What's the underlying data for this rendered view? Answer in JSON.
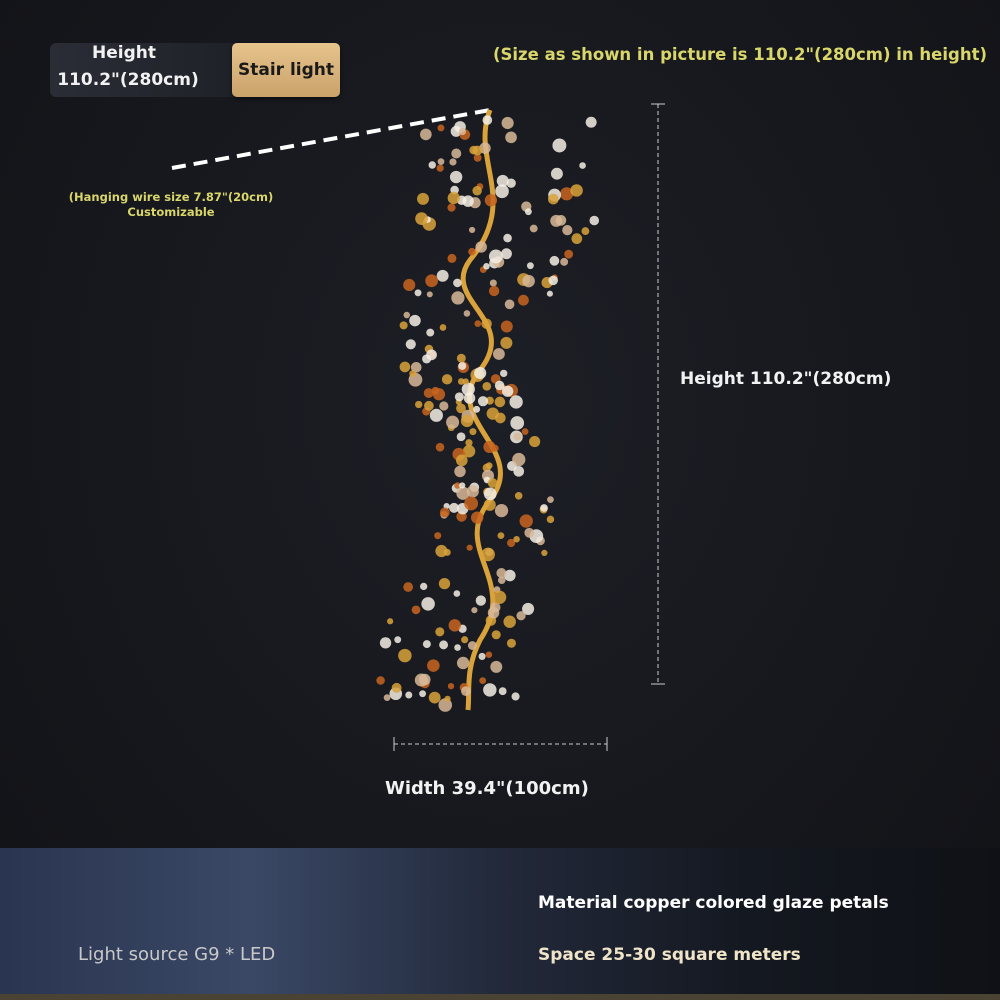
{
  "header": {
    "height_label": "Height",
    "height_value": "110.2\"(280cm)",
    "category_badge": "Stair light"
  },
  "size_note": "(Size as shown in picture is 110.2\"(280cm) in height)",
  "hanging_wire": {
    "line1": "(Hanging wire size 7.87\"(20cm)",
    "line2": "Customizable"
  },
  "dimensions": {
    "height": "Height 110.2\"(280cm)",
    "width": "Width 39.4\"(100cm)"
  },
  "specs": {
    "light_source": "Light source G9 * LED",
    "material": "Material copper colored glaze petals",
    "space": "Space 25-30 square meters"
  },
  "colors": {
    "accent_yellow": "#d9d66a",
    "badge_gold": "#d9b47a",
    "vine_gold": "#d9a23a",
    "petal_amber": "#c8641e",
    "petal_white": "#f4efe4"
  }
}
